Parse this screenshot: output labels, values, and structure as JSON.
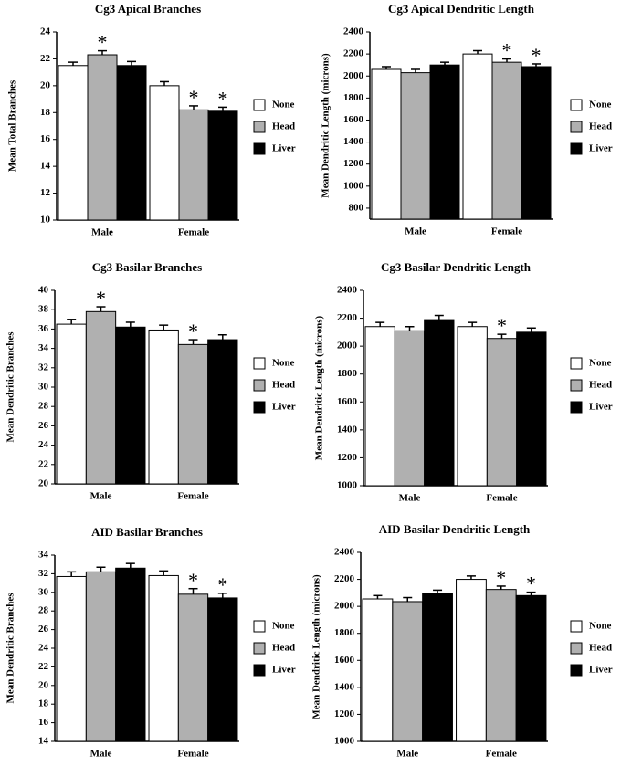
{
  "chart_data": [
    {
      "type": "bar",
      "title": "Cg3 Apical Branches",
      "ylabel": "Mean Total Branches",
      "categories": [
        "Male",
        "Female"
      ],
      "series": [
        {
          "name": "None",
          "color": "#ffffff",
          "values": [
            21.5,
            20.0
          ],
          "errors": [
            0.25,
            0.3
          ]
        },
        {
          "name": "Head",
          "color": "#b0b0b0",
          "values": [
            22.3,
            18.2
          ],
          "errors": [
            0.3,
            0.3
          ]
        },
        {
          "name": "Liver",
          "color": "#000000",
          "values": [
            21.5,
            18.1
          ],
          "errors": [
            0.3,
            0.3
          ]
        }
      ],
      "ylim": [
        10,
        24
      ],
      "yticks": [
        10,
        12,
        14,
        16,
        18,
        20,
        22,
        24
      ],
      "annotations": [
        {
          "text": "*",
          "series": "Head",
          "category": "Male"
        },
        {
          "text": "*",
          "series": "Head",
          "category": "Female"
        },
        {
          "text": "*",
          "series": "Liver",
          "category": "Female"
        }
      ]
    },
    {
      "type": "bar",
      "title": "Cg3 Apical Dendritic Length",
      "ylabel": "Mean Dendritic Length (microns)",
      "categories": [
        "Male",
        "Female"
      ],
      "series": [
        {
          "name": "None",
          "color": "#ffffff",
          "values": [
            2060,
            2200
          ],
          "errors": [
            25,
            30
          ]
        },
        {
          "name": "Head",
          "color": "#b0b0b0",
          "values": [
            2030,
            2125
          ],
          "errors": [
            30,
            30
          ]
        },
        {
          "name": "Liver",
          "color": "#000000",
          "values": [
            2100,
            2085
          ],
          "errors": [
            25,
            25
          ]
        }
      ],
      "ylim": [
        700,
        2400
      ],
      "yticks": [
        800,
        1000,
        1200,
        1400,
        1600,
        1800,
        2000,
        2200,
        2400
      ],
      "annotations": [
        {
          "text": "*",
          "series": "Head",
          "category": "Female"
        },
        {
          "text": "*",
          "series": "Liver",
          "category": "Female"
        }
      ]
    },
    {
      "type": "bar",
      "title": "Cg3 Basilar Branches",
      "ylabel": "Mean Dendritic Branches",
      "categories": [
        "Male",
        "Female"
      ],
      "series": [
        {
          "name": "None",
          "color": "#ffffff",
          "values": [
            36.5,
            35.9
          ],
          "errors": [
            0.5,
            0.5
          ]
        },
        {
          "name": "Head",
          "color": "#b0b0b0",
          "values": [
            37.8,
            34.4
          ],
          "errors": [
            0.5,
            0.5
          ]
        },
        {
          "name": "Liver",
          "color": "#000000",
          "values": [
            36.2,
            34.9
          ],
          "errors": [
            0.5,
            0.5
          ]
        }
      ],
      "ylim": [
        20,
        40
      ],
      "yticks": [
        20,
        22,
        24,
        26,
        28,
        30,
        32,
        34,
        36,
        38,
        40
      ],
      "annotations": [
        {
          "text": "*",
          "series": "Head",
          "category": "Male"
        },
        {
          "text": "*",
          "series": "Head",
          "category": "Female"
        }
      ]
    },
    {
      "type": "bar",
      "title": "Cg3 Basilar Dendritic Length",
      "ylabel": "Mean Dendritic Length (microns)",
      "categories": [
        "Male",
        "Female"
      ],
      "series": [
        {
          "name": "None",
          "color": "#ffffff",
          "values": [
            2140,
            2140
          ],
          "errors": [
            30,
            30
          ]
        },
        {
          "name": "Head",
          "color": "#b0b0b0",
          "values": [
            2110,
            2055
          ],
          "errors": [
            30,
            30
          ]
        },
        {
          "name": "Liver",
          "color": "#000000",
          "values": [
            2190,
            2100
          ],
          "errors": [
            30,
            30
          ]
        }
      ],
      "ylim": [
        1000,
        2400
      ],
      "yticks": [
        1000,
        1200,
        1400,
        1600,
        1800,
        2000,
        2200,
        2400
      ],
      "annotations": [
        {
          "text": "*",
          "series": "Head",
          "category": "Female"
        }
      ]
    },
    {
      "type": "bar",
      "title": "AID Basilar Branches",
      "ylabel": "Mean Dendritic Branches",
      "categories": [
        "Male",
        "Female"
      ],
      "series": [
        {
          "name": "None",
          "color": "#ffffff",
          "values": [
            31.7,
            31.8
          ],
          "errors": [
            0.5,
            0.5
          ]
        },
        {
          "name": "Head",
          "color": "#b0b0b0",
          "values": [
            32.2,
            29.8
          ],
          "errors": [
            0.5,
            0.6
          ]
        },
        {
          "name": "Liver",
          "color": "#000000",
          "values": [
            32.6,
            29.4
          ],
          "errors": [
            0.5,
            0.5
          ]
        }
      ],
      "ylim": [
        14,
        34
      ],
      "yticks": [
        14,
        16,
        18,
        20,
        22,
        24,
        26,
        28,
        30,
        32,
        34
      ],
      "annotations": [
        {
          "text": "*",
          "series": "Head",
          "category": "Female"
        },
        {
          "text": "*",
          "series": "Liver",
          "category": "Female"
        }
      ]
    },
    {
      "type": "bar",
      "title": "AID Basilar Dendritic Length",
      "ylabel": "Mean Dendritic Length (microns)",
      "categories": [
        "Male",
        "Female"
      ],
      "series": [
        {
          "name": "None",
          "color": "#ffffff",
          "values": [
            2055,
            2200
          ],
          "errors": [
            25,
            25
          ]
        },
        {
          "name": "Head",
          "color": "#b0b0b0",
          "values": [
            2035,
            2125
          ],
          "errors": [
            30,
            25
          ]
        },
        {
          "name": "Liver",
          "color": "#000000",
          "values": [
            2095,
            2080
          ],
          "errors": [
            25,
            25
          ]
        }
      ],
      "ylim": [
        1000,
        2400
      ],
      "yticks": [
        1000,
        1200,
        1400,
        1600,
        1800,
        2000,
        2200,
        2400
      ],
      "annotations": [
        {
          "text": "*",
          "series": "Head",
          "category": "Female"
        },
        {
          "text": "*",
          "series": "Liver",
          "category": "Female"
        }
      ]
    }
  ]
}
